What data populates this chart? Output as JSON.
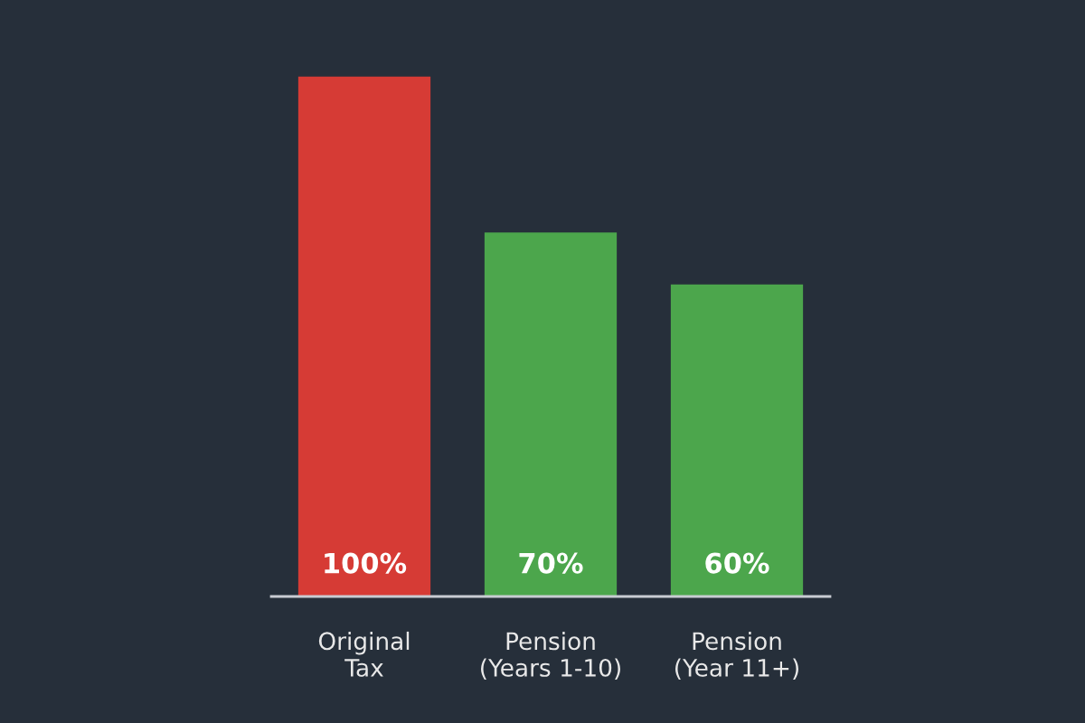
{
  "chart_data": {
    "type": "bar",
    "categories": [
      "Original\nTax",
      "Pension\n(Years 1-10)",
      "Pension\n(Year 11+)"
    ],
    "values": [
      100,
      70,
      60
    ],
    "colors": [
      "#d63b35",
      "#4ca64c",
      "#4ca64c"
    ],
    "value_labels": [
      "100%",
      "70%",
      "60%"
    ],
    "grid": false,
    "legend": false,
    "tick_labels": "x"
  }
}
